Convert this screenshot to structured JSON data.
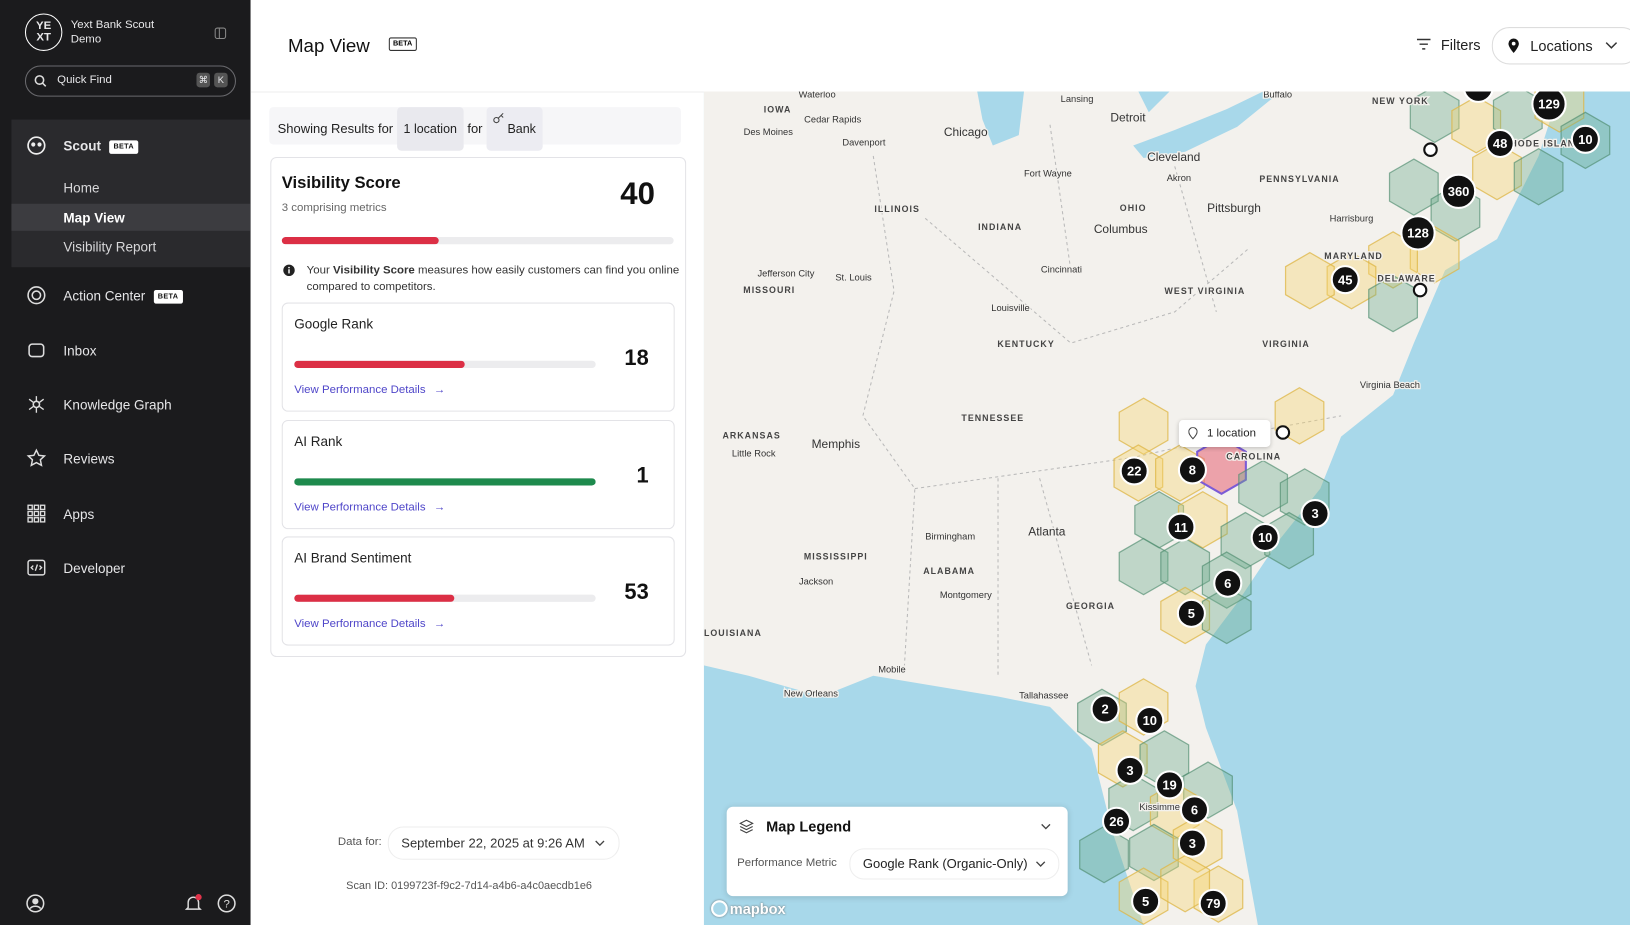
{
  "sidebar": {
    "logo_top": "YE",
    "logo_bottom": "XT",
    "org": "Yext Bank Scout",
    "org_sub": "Demo",
    "search": "Quick Find",
    "shortcut": [
      "⌘",
      "K"
    ],
    "section": {
      "label": "Scout",
      "badge": "BETA",
      "items": [
        "Home",
        "Map View",
        "Visibility Report"
      ]
    },
    "nav": [
      {
        "label": "Action Center",
        "badge": "BETA"
      },
      {
        "label": "Inbox"
      },
      {
        "label": "Knowledge Graph"
      },
      {
        "label": "Reviews"
      },
      {
        "label": "Apps"
      },
      {
        "label": "Developer"
      }
    ]
  },
  "header": {
    "title": "Map View",
    "badge": "BETA",
    "filters": "Filters",
    "locations": "Locations"
  },
  "results": {
    "prefix": "Showing Results for",
    "count": "1 location",
    "joiner": "for",
    "keyword": "Bank"
  },
  "visibility": {
    "title": "Visibility Score",
    "subtitle": "3 comprising metrics",
    "score": 40,
    "info_before": "Your",
    "info_bold": "Visibility Score",
    "info_after": "measures how easily customers can find you online compared to competitors."
  },
  "metrics": [
    {
      "name": "Google Rank",
      "value": 18,
      "link": "View Performance Details"
    },
    {
      "name": "AI Rank",
      "value": 1,
      "link": "View Performance Details"
    },
    {
      "name": "AI Brand Sentiment",
      "value": 53,
      "link": "View Performance Details"
    }
  ],
  "footer": {
    "data_for": "Data for:",
    "date": "September 22, 2025 at 9:26 AM",
    "scan": "Scan ID: 0199723f-f9c2-7d14-a4b6-a4c0aecdb1e6"
  },
  "map": {
    "labels": [
      "Waterloo",
      "IOWA",
      "Cedar Rapids",
      "Des Moines",
      "Davenport",
      "Chicago",
      "Lansing",
      "Buffalo",
      "Detroit",
      "NEW YORK",
      "Cleveland",
      "Akron",
      "Fort Wayne",
      "PENNSYLVANIA",
      "ILLINOIS",
      "OHIO",
      "Pittsburgh",
      "INDIANA",
      "Columbus",
      "Harrisburg",
      "RHODE ISLAND",
      "MARYLAND",
      "Cincinnati",
      "Jefferson City",
      "St. Louis",
      "DELAWARE",
      "MISSOURI",
      "WEST VIRGINIA",
      "Louisville",
      "KENTUCKY",
      "VIRGINIA",
      "Virginia Beach",
      "TENNESSEE",
      "ARKANSAS",
      "Memphis",
      "Little Rock",
      "CAROLINA",
      "Birmingham",
      "Atlanta",
      "MISSISSIPPI",
      "ALABAMA",
      "Jackson",
      "Montgomery",
      "GEORGIA",
      "LOUISIANA",
      "Mobile",
      "New Orleans",
      "Tallahassee",
      "Kissimmee"
    ],
    "clusters": [
      129,
      48,
      10,
      360,
      128,
      45,
      22,
      8,
      11,
      10,
      3,
      6,
      5,
      2,
      10,
      3,
      19,
      6,
      26,
      3,
      5,
      79
    ],
    "tooltip": "1 location",
    "attribution": "mapbox",
    "legend": {
      "title": "Map Legend",
      "metric_label": "Performance Metric",
      "metric": "Google Rank (Organic-Only)"
    }
  }
}
